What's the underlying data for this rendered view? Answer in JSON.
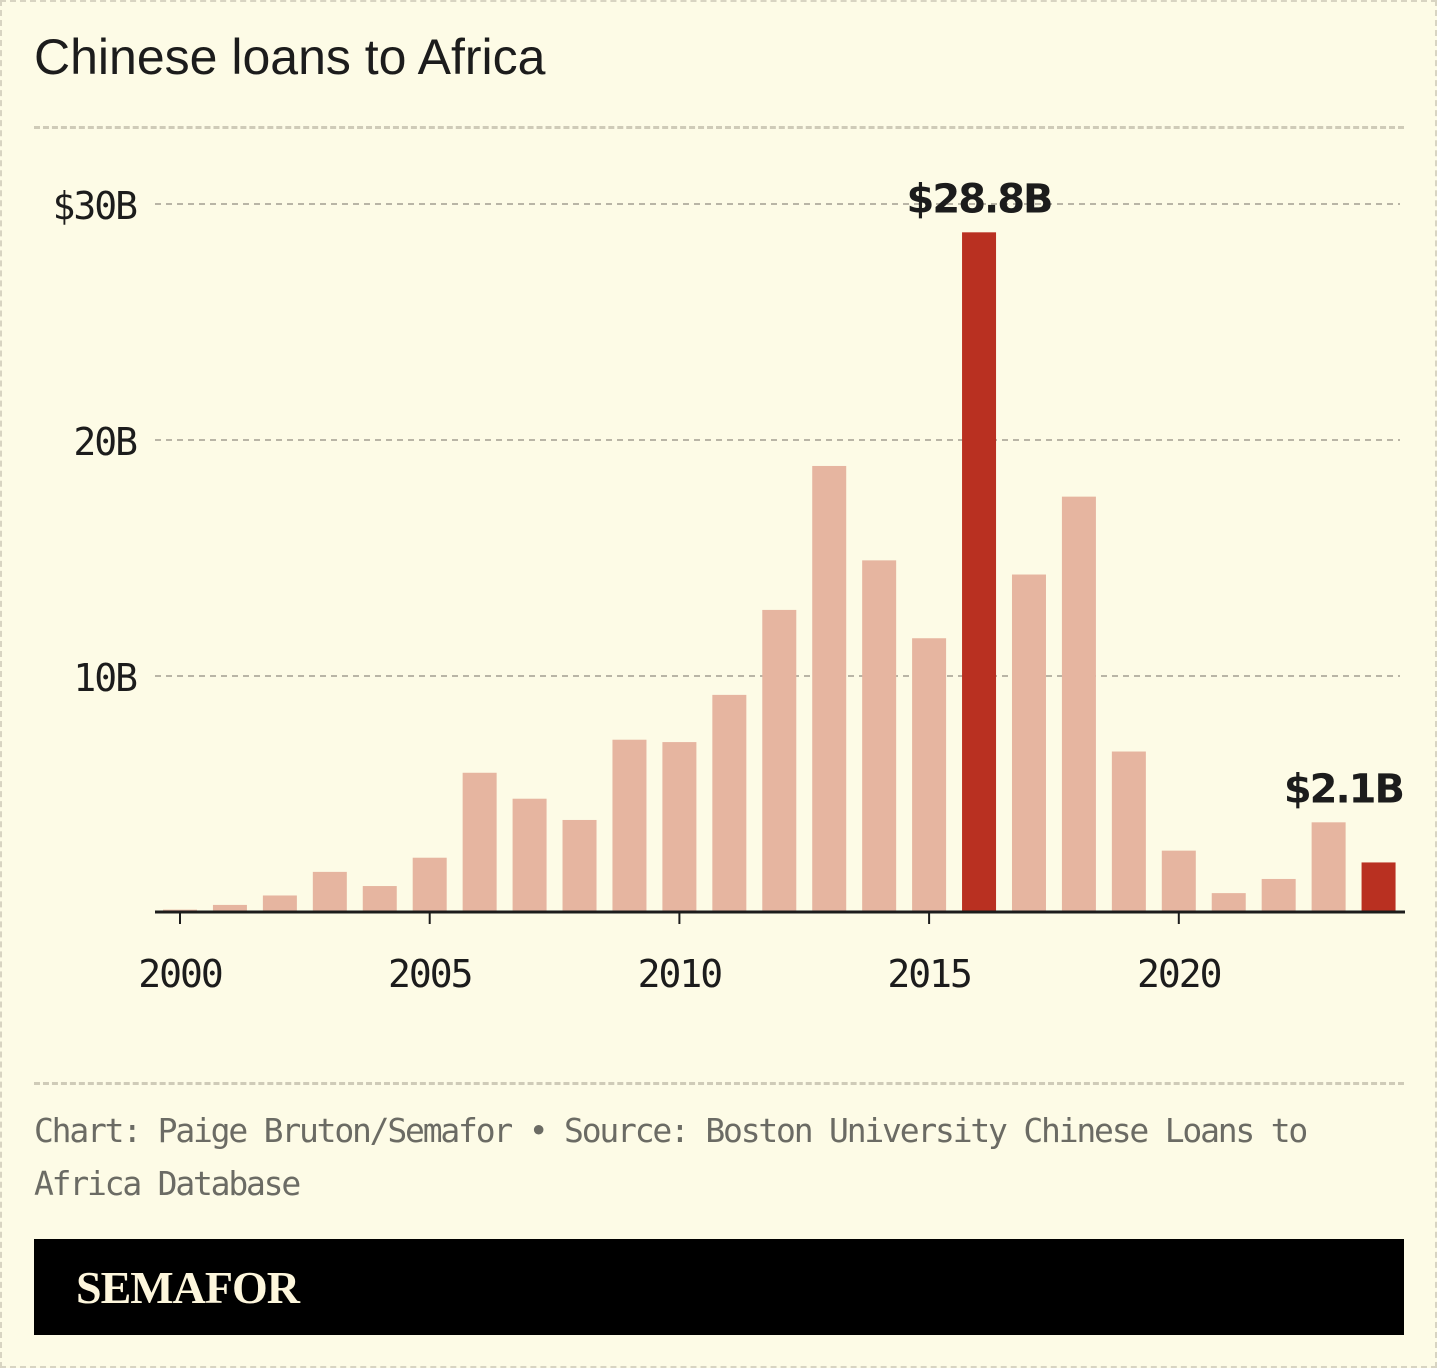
{
  "title": "Chinese loans to Africa",
  "source": "Chart: Paige Bruton/Semafor • Source: Boston University Chinese Loans to Africa Database",
  "brand": "SEMAFOR",
  "colors": {
    "background": "#fdfbe6",
    "bar": "#e6b5a0",
    "highlight": "#b93021",
    "grid": "#b9b5a6",
    "text": "#1c1c1c"
  },
  "chart_data": {
    "type": "bar",
    "x": [
      2000,
      2001,
      2002,
      2003,
      2004,
      2005,
      2006,
      2007,
      2008,
      2009,
      2010,
      2011,
      2012,
      2013,
      2014,
      2015,
      2016,
      2017,
      2018,
      2019,
      2020,
      2021,
      2022,
      2023,
      2024
    ],
    "values": [
      0.1,
      0.3,
      0.7,
      1.7,
      1.1,
      2.3,
      5.9,
      4.8,
      3.9,
      7.3,
      7.2,
      9.2,
      12.8,
      18.9,
      14.9,
      11.6,
      28.8,
      14.3,
      17.6,
      6.8,
      2.6,
      0.8,
      1.4,
      3.8,
      2.1
    ],
    "unit": "billion USD",
    "highlighted": [
      2016,
      2024
    ],
    "annotations": [
      {
        "x": 2016,
        "label": "$28.8B"
      },
      {
        "x": 2024,
        "label": "$2.1B"
      }
    ],
    "yticks": [
      {
        "value": 10,
        "label": "10B"
      },
      {
        "value": 20,
        "label": "20B"
      },
      {
        "value": 30,
        "label": "$30B"
      }
    ],
    "xticks": [
      2000,
      2005,
      2010,
      2015,
      2020
    ],
    "ylim": [
      0,
      30
    ],
    "grid": true,
    "xlabel": "",
    "ylabel": ""
  }
}
